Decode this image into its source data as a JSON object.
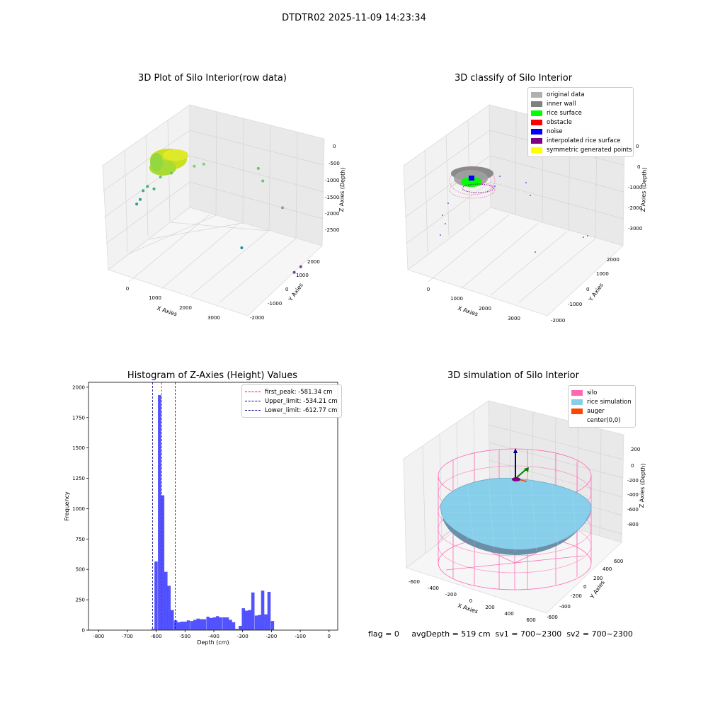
{
  "figure": {
    "suptitle": "DTDTR02 2025-11-09 14:23:34",
    "footer_text": "flag = 0     avgDepth = 519 cm  sv1 = 700~2300  sv2 = 700~2300"
  },
  "chart_data": [
    {
      "type": "scatter",
      "subtype": "3d",
      "title": "3D Plot of Silo Interior(row data)",
      "xlabel": "X Axies",
      "ylabel": "Y Axies",
      "zlabel": "Z Axies (Depth)",
      "x_ticks": [
        "0",
        "1000",
        "2000",
        "3000"
      ],
      "y_ticks": [
        "-2000",
        "-1000",
        "0",
        "1000",
        "2000"
      ],
      "z_ticks": [
        "0",
        "-500",
        "-1000",
        "-1500",
        "-2000",
        "-2500"
      ],
      "colormap": "viridis",
      "surface_cluster": {
        "x": [
          200,
          1100
        ],
        "y": [
          -800,
          800
        ],
        "z": [
          -700,
          -500
        ],
        "color": "#c8e020"
      },
      "points": [
        {
          "x": 780,
          "y": 200,
          "z": -900,
          "color": "#7ed35e"
        },
        {
          "x": 900,
          "y": 400,
          "z": -850,
          "color": "#7ed35e"
        },
        {
          "x": 500,
          "y": -300,
          "z": -1050,
          "color": "#5ec962"
        },
        {
          "x": 350,
          "y": -500,
          "z": -1150,
          "color": "#5ec962"
        },
        {
          "x": 150,
          "y": -700,
          "z": -1400,
          "color": "#3bb079"
        },
        {
          "x": 100,
          "y": -800,
          "z": -1500,
          "color": "#3bb079"
        },
        {
          "x": 250,
          "y": -600,
          "z": -1450,
          "color": "#3bb079"
        },
        {
          "x": 80,
          "y": -900,
          "z": -1700,
          "color": "#2a9d8a"
        },
        {
          "x": 50,
          "y": -1000,
          "z": -1800,
          "color": "#2a9d8a"
        },
        {
          "x": 1900,
          "y": 900,
          "z": -750,
          "color": "#5ec962"
        },
        {
          "x": 2100,
          "y": 700,
          "z": -950,
          "color": "#5ec962"
        },
        {
          "x": 2500,
          "y": 800,
          "z": -1500,
          "color": "#999999"
        },
        {
          "x": 2200,
          "y": -500,
          "z": -2300,
          "color": "#21918c"
        },
        {
          "x": 3300,
          "y": -300,
          "z": -2600,
          "color": "#7a3fa0"
        },
        {
          "x": 3400,
          "y": -200,
          "z": -2450,
          "color": "#7a3fa0"
        }
      ]
    },
    {
      "type": "scatter",
      "subtype": "3d",
      "title": "3D classify of Silo Interior",
      "xlabel": "X Axies",
      "ylabel": "Y Axies",
      "zlabel": "Z Axies (Depth)",
      "x_ticks": [
        "0",
        "1000",
        "2000",
        "3000"
      ],
      "y_ticks": [
        "-2000",
        "-1000",
        "0",
        "1000",
        "2000"
      ],
      "z_ticks": [
        "0",
        "-1000",
        "-2000",
        "-3000"
      ],
      "legend_position": "top-right",
      "legend": [
        {
          "label": "original data",
          "color": "#b0b0b0"
        },
        {
          "label": "inner wall",
          "color": "#808080"
        },
        {
          "label": "rice surface",
          "color": "#00ff00"
        },
        {
          "label": "obstacle",
          "color": "#ff0000"
        },
        {
          "label": "noise",
          "color": "#0000ff"
        },
        {
          "label": "interpolated rice surface",
          "color": "#800080"
        },
        {
          "label": "symmetric generated points",
          "color": "#ffff00"
        }
      ]
    },
    {
      "type": "bar",
      "subtype": "histogram",
      "title": "Histogram of Z-Axies (Height) Values",
      "xlabel": "Depth (cm)",
      "ylabel": "Frequency",
      "xlim": [
        -835,
        30
      ],
      "ylim": [
        0,
        2040
      ],
      "x_ticks": [
        -800,
        -700,
        -600,
        -500,
        -400,
        -300,
        -200,
        -100,
        0
      ],
      "y_ticks": [
        0,
        250,
        500,
        750,
        1000,
        1250,
        1500,
        1750,
        2000
      ],
      "bar_color": "#0000ff",
      "bin_width": 11.2,
      "bins": [
        {
          "x": -617,
          "value": 10
        },
        {
          "x": -606,
          "value": 565
        },
        {
          "x": -594,
          "value": 1935
        },
        {
          "x": -583,
          "value": 1110
        },
        {
          "x": -572,
          "value": 480
        },
        {
          "x": -561,
          "value": 365
        },
        {
          "x": -550,
          "value": 165
        },
        {
          "x": -538,
          "value": 80
        },
        {
          "x": -527,
          "value": 65
        },
        {
          "x": -516,
          "value": 70
        },
        {
          "x": -505,
          "value": 70
        },
        {
          "x": -494,
          "value": 80
        },
        {
          "x": -482,
          "value": 75
        },
        {
          "x": -471,
          "value": 85
        },
        {
          "x": -460,
          "value": 95
        },
        {
          "x": -449,
          "value": 90
        },
        {
          "x": -438,
          "value": 90
        },
        {
          "x": -426,
          "value": 110
        },
        {
          "x": -415,
          "value": 100
        },
        {
          "x": -404,
          "value": 105
        },
        {
          "x": -393,
          "value": 115
        },
        {
          "x": -382,
          "value": 105
        },
        {
          "x": -370,
          "value": 105
        },
        {
          "x": -359,
          "value": 105
        },
        {
          "x": -348,
          "value": 85
        },
        {
          "x": -337,
          "value": 65
        },
        {
          "x": -326,
          "value": 10
        },
        {
          "x": -314,
          "value": 35
        },
        {
          "x": -303,
          "value": 180
        },
        {
          "x": -292,
          "value": 160
        },
        {
          "x": -281,
          "value": 165
        },
        {
          "x": -270,
          "value": 310
        },
        {
          "x": -258,
          "value": 120
        },
        {
          "x": -247,
          "value": 125
        },
        {
          "x": -236,
          "value": 325
        },
        {
          "x": -225,
          "value": 130
        },
        {
          "x": -214,
          "value": 315
        },
        {
          "x": -202,
          "value": 75
        }
      ],
      "vlines": [
        {
          "x": -581.34,
          "color": "#ff0000",
          "label": "first_peak: -581.34 cm"
        },
        {
          "x": -534.21,
          "color": "#00008b",
          "label": "Upper_limit: -534.21 cm"
        },
        {
          "x": -612.77,
          "color": "#00008b",
          "label": "Lower_limit: -612.77 cm"
        }
      ],
      "legend_position": "top-right"
    },
    {
      "type": "scatter",
      "subtype": "3d",
      "title": "3D simulation of Silo Interior",
      "xlabel": "X Axies",
      "ylabel": "Y Axies",
      "zlabel": "Z Axies (Depth)",
      "x_ticks": [
        "-600",
        "-400",
        "-200",
        "0",
        "200",
        "400",
        "600"
      ],
      "y_ticks": [
        "-600",
        "-400",
        "-200",
        "0",
        "200",
        "400",
        "600"
      ],
      "z_ticks": [
        "200",
        "0",
        "-200",
        "-400",
        "-600",
        "-800"
      ],
      "legend_position": "top-right",
      "legend": [
        {
          "label": "silo",
          "color": "#ff69b4"
        },
        {
          "label": "rice simulation",
          "color": "#87ceeb"
        },
        {
          "label": "auger",
          "color": "#ff4500"
        },
        {
          "label": "center(0,0)",
          "color": "#ffffff"
        }
      ]
    }
  ]
}
